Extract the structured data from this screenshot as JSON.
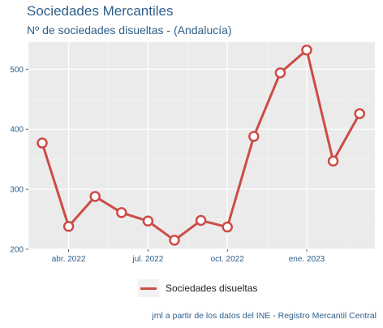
{
  "header": {
    "title": "Sociedades Mercantiles",
    "subtitle": "Nº de sociedades disueltas - (Andalucía)"
  },
  "legend": {
    "label": "Sociedades disueltas"
  },
  "caption": "jml a partir de los datos del INE - Registro Mercantil Central",
  "chart_data": {
    "type": "line",
    "x": [
      "2022-03",
      "2022-04",
      "2022-05",
      "2022-06",
      "2022-07",
      "2022-08",
      "2022-09",
      "2022-10",
      "2022-11",
      "2022-12",
      "2023-01",
      "2023-02",
      "2023-03"
    ],
    "series": [
      {
        "name": "Sociedades disueltas",
        "values": [
          377,
          238,
          288,
          261,
          247,
          215,
          248,
          237,
          388,
          494,
          532,
          347,
          426
        ],
        "color": "#cc4c46"
      }
    ],
    "x_ticks": [
      "abr. 2022",
      "jul. 2022",
      "oct. 2022",
      "ene. 2023"
    ],
    "y_ticks": [
      "200",
      "300",
      "400",
      "500"
    ],
    "ylim": [
      200,
      545
    ],
    "grid": true,
    "legend_position": "bottom"
  }
}
